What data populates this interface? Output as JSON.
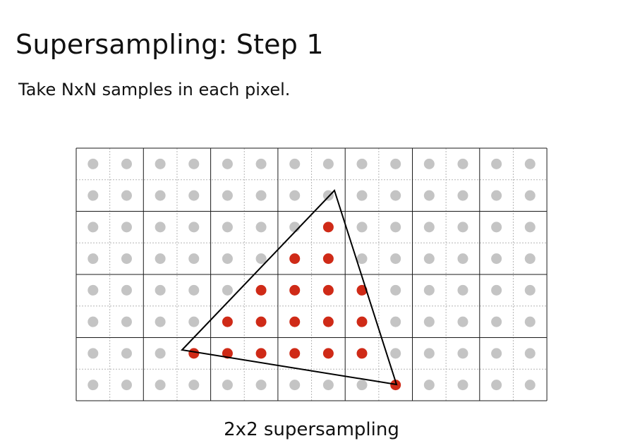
{
  "slide": {
    "title": "Supersampling: Step 1",
    "body": "Take NxN samples in each pixel.",
    "caption": "2x2 supersampling"
  },
  "grid": {
    "pixel_cols": 7,
    "pixel_rows": 4,
    "samples_per_pixel_side": 2
  },
  "covered_samples": [
    [
      7,
      2
    ],
    [
      6,
      3
    ],
    [
      7,
      3
    ],
    [
      5,
      4
    ],
    [
      6,
      4
    ],
    [
      7,
      4
    ],
    [
      8,
      4
    ],
    [
      4,
      5
    ],
    [
      5,
      5
    ],
    [
      6,
      5
    ],
    [
      7,
      5
    ],
    [
      8,
      5
    ],
    [
      3,
      6
    ],
    [
      4,
      6
    ],
    [
      5,
      6
    ],
    [
      6,
      6
    ],
    [
      7,
      6
    ],
    [
      8,
      6
    ],
    [
      9,
      7
    ]
  ],
  "colors": {
    "sample_uncovered": "#c4c4c4",
    "sample_covered": "#cf2a17",
    "pixel_grid": "#1a1a1a",
    "subsample_grid": "#b5b5b5",
    "triangle": "#000000"
  }
}
